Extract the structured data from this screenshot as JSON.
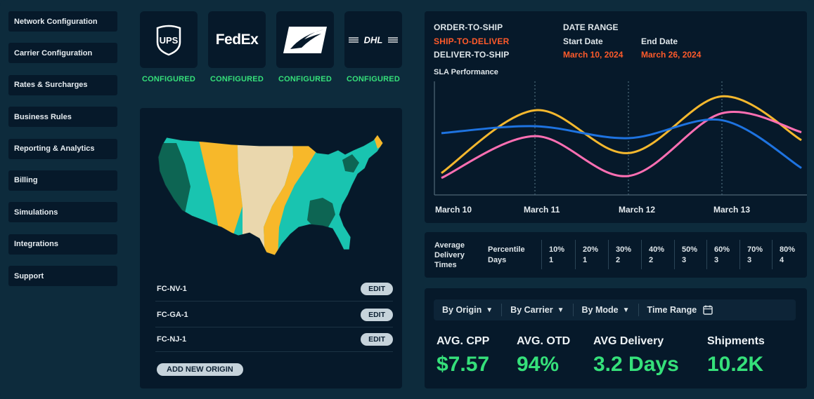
{
  "sidebar": {
    "items": [
      {
        "label": "Network Configuration"
      },
      {
        "label": "Carrier Configuration"
      },
      {
        "label": "Rates & Surcharges"
      },
      {
        "label": "Business Rules"
      },
      {
        "label": "Reporting & Analytics"
      },
      {
        "label": "Billing"
      },
      {
        "label": "Simulations"
      },
      {
        "label": "Integrations"
      },
      {
        "label": "Support"
      }
    ]
  },
  "carriers": [
    {
      "logo": "UPS",
      "status": "CONFIGURED"
    },
    {
      "logo": "FedEx",
      "status": "CONFIGURED"
    },
    {
      "logo": "USPS",
      "status": "CONFIGURED"
    },
    {
      "logo": "DHL",
      "status": "CONFIGURED"
    }
  ],
  "origins": {
    "items": [
      {
        "name": "FC-NV-1",
        "action": "EDIT"
      },
      {
        "name": "FC-GA-1",
        "action": "EDIT"
      },
      {
        "name": "FC-NJ-1",
        "action": "EDIT"
      }
    ],
    "add_label": "ADD NEW ORIGIN"
  },
  "sla": {
    "modes": [
      {
        "label": "ORDER-TO-SHIP",
        "active": false
      },
      {
        "label": "SHIP-TO-DELIVER",
        "active": true
      },
      {
        "label": "DELIVER-TO-SHIP",
        "active": false
      }
    ],
    "date_range_label": "DATE RANGE",
    "start_label": "Start Date",
    "start_value": "March 10, 2024",
    "end_label": "End Date",
    "end_value": "March 26, 2024",
    "title": "SLA Performance",
    "accent_color": "#ff5a2a"
  },
  "chart_data": {
    "type": "line",
    "title": "SLA Performance",
    "categories": [
      "March 10",
      "March 11",
      "March 12",
      "March 13"
    ],
    "x_ticks": [
      "March 10",
      "March 11",
      "March 12",
      "March 13"
    ],
    "grid": "vertical dotted",
    "series": [
      {
        "color": "#f5b82e",
        "points": [
          [
            0,
            0.15
          ],
          [
            1.0,
            0.78
          ],
          [
            2.0,
            0.35
          ],
          [
            3.0,
            0.92
          ],
          [
            3.85,
            0.48
          ]
        ]
      },
      {
        "color": "#ff6fb3",
        "points": [
          [
            0,
            0.1
          ],
          [
            1.0,
            0.52
          ],
          [
            2.0,
            0.12
          ],
          [
            3.0,
            0.75
          ],
          [
            3.85,
            0.56
          ]
        ]
      },
      {
        "color": "#1e73e0",
        "points": [
          [
            0,
            0.55
          ],
          [
            1.0,
            0.62
          ],
          [
            2.0,
            0.5
          ],
          [
            3.0,
            0.68
          ],
          [
            3.85,
            0.2
          ]
        ]
      }
    ]
  },
  "delivery_times": {
    "heading": "Average Delivery Times",
    "sub_label": "Percentile Days",
    "columns": [
      {
        "pct": "10%",
        "days": "1"
      },
      {
        "pct": "20%",
        "days": "1"
      },
      {
        "pct": "30%",
        "days": "2"
      },
      {
        "pct": "40%",
        "days": "2"
      },
      {
        "pct": "50%",
        "days": "3"
      },
      {
        "pct": "60%",
        "days": "3"
      },
      {
        "pct": "70%",
        "days": "3"
      },
      {
        "pct": "80%",
        "days": "4"
      }
    ]
  },
  "filters": {
    "by_origin": "By Origin",
    "by_carrier": "By Carrier",
    "by_mode": "By Mode",
    "time_range": "Time Range"
  },
  "kpis": [
    {
      "label": "AVG. CPP",
      "value": "$7.57"
    },
    {
      "label": "AVG. OTD",
      "value": "94%"
    },
    {
      "label": "AVG Delivery",
      "value": "3.2 Days"
    },
    {
      "label": "Shipments",
      "value": "10.2K"
    }
  ],
  "colors": {
    "background": "#0d2b3c",
    "panel": "#06192a",
    "configured_green": "#35e07a",
    "map_teal": "#19c4b0",
    "map_dark": "#0d6553",
    "map_yellow": "#f7b82a",
    "map_beige": "#ead7ad"
  }
}
